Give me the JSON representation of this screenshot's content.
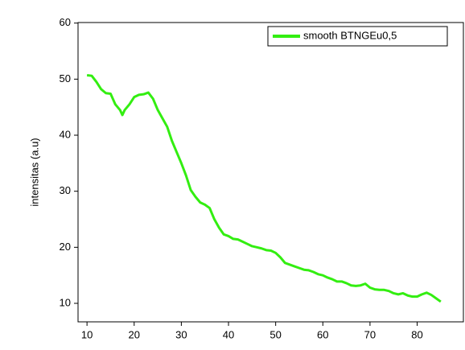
{
  "chart_data": {
    "type": "line",
    "y_label": "intensitas (a.u)",
    "x": [
      10,
      11,
      12,
      13,
      14,
      15,
      16,
      17,
      17.5,
      18,
      19,
      20,
      21,
      22,
      23,
      24,
      25,
      26,
      27,
      28,
      29,
      30,
      31,
      32,
      33,
      34,
      35,
      36,
      37,
      38,
      39,
      40,
      41,
      42,
      43,
      44,
      45,
      46,
      47,
      48,
      49,
      50,
      51,
      52,
      53,
      54,
      55,
      56,
      57,
      58,
      59,
      60,
      61,
      62,
      63,
      64,
      65,
      66,
      67,
      68,
      69,
      70,
      71,
      72,
      73,
      74,
      75,
      76,
      77,
      78,
      79,
      80,
      81,
      82,
      83,
      84,
      85
    ],
    "series": [
      {
        "name": "smooth BTNGEu0,5",
        "color": "#33ee11",
        "values": [
          50.7,
          50.6,
          49.5,
          48.2,
          47.5,
          47.4,
          45.5,
          44.5,
          43.6,
          44.5,
          45.5,
          46.8,
          47.2,
          47.3,
          47.6,
          46.5,
          44.5,
          43,
          41.5,
          39,
          37,
          35,
          32.8,
          30.2,
          29,
          28,
          27.6,
          27,
          25,
          23.5,
          22.3,
          22,
          21.5,
          21.4,
          21,
          20.6,
          20.2,
          20,
          19.8,
          19.5,
          19.4,
          19,
          18.2,
          17.2,
          16.9,
          16.6,
          16.3,
          16,
          15.9,
          15.6,
          15.2,
          15,
          14.6,
          14.3,
          13.9,
          13.9,
          13.6,
          13.2,
          13.1,
          13.2,
          13.5,
          12.8,
          12.5,
          12.4,
          12.4,
          12.2,
          11.8,
          11.6,
          11.8,
          11.4,
          11.2,
          11.2,
          11.6,
          11.9,
          11.5,
          10.9,
          10.3
        ]
      }
    ],
    "xlim": [
      8.1,
      89.8
    ],
    "ylim": [
      6.7,
      60.1
    ],
    "xticks": [
      10,
      20,
      30,
      40,
      50,
      60,
      70,
      80
    ],
    "yticks": [
      10,
      20,
      30,
      40,
      50,
      60
    ],
    "legend": "upper right"
  }
}
